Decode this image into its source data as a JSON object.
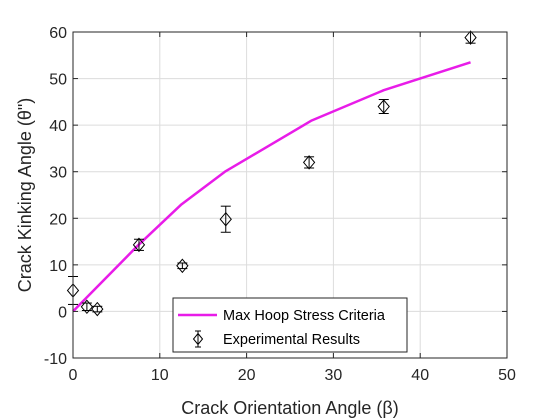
{
  "chart_data": {
    "type": "line",
    "xlabel": "Crack Orientation Angle (β)",
    "ylabel": "Crack Kinking Angle (θ\")",
    "xlim": [
      0,
      50
    ],
    "ylim": [
      -10,
      60
    ],
    "xticks": [
      "0",
      "10",
      "20",
      "30",
      "40",
      "50"
    ],
    "yticks": [
      "-10",
      "0",
      "10",
      "20",
      "30",
      "40",
      "50",
      "60"
    ],
    "grid": true,
    "legend_position": "bottom-center",
    "series": [
      {
        "name": "Max Hoop Stress Criteria",
        "kind": "line",
        "color": "#E81CE8",
        "x": [
          0,
          7.5,
          12.5,
          17.5,
          27.5,
          35.8,
          45.8
        ],
        "y": [
          0,
          14.2,
          23.0,
          30.0,
          41.0,
          47.5,
          53.5
        ]
      },
      {
        "name": "Experimental Results",
        "kind": "errorbar",
        "marker": "diamond",
        "color": "#000000",
        "x": [
          0,
          1.6,
          2.8,
          7.6,
          12.6,
          17.6,
          27.2,
          35.8,
          45.8
        ],
        "y": [
          4.5,
          1.0,
          0.5,
          14.3,
          9.8,
          19.8,
          32.0,
          44.0,
          58.8
        ],
        "err": [
          3.0,
          0.8,
          0.6,
          1.2,
          0.6,
          2.8,
          1.2,
          1.5,
          1.2
        ]
      }
    ]
  }
}
